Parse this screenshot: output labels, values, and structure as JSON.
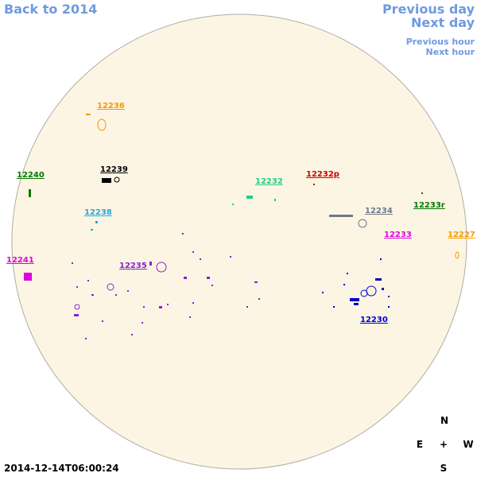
{
  "nav": {
    "back": "Back to 2014",
    "previous_day": "Previous day",
    "next_day": "Next day",
    "previous_hour": "Previous hour",
    "next_hour": "Next hour"
  },
  "regions": [
    "12236",
    "12239",
    "12240",
    "12232",
    "12232p",
    "12238",
    "12234",
    "12233r",
    "12233",
    "12227",
    "12241",
    "12235",
    "12230"
  ],
  "compass": {
    "north": "N",
    "east": "E",
    "center": "+",
    "west": "W",
    "south": "S"
  },
  "timestamp": "2014-12-14T06:00:24"
}
